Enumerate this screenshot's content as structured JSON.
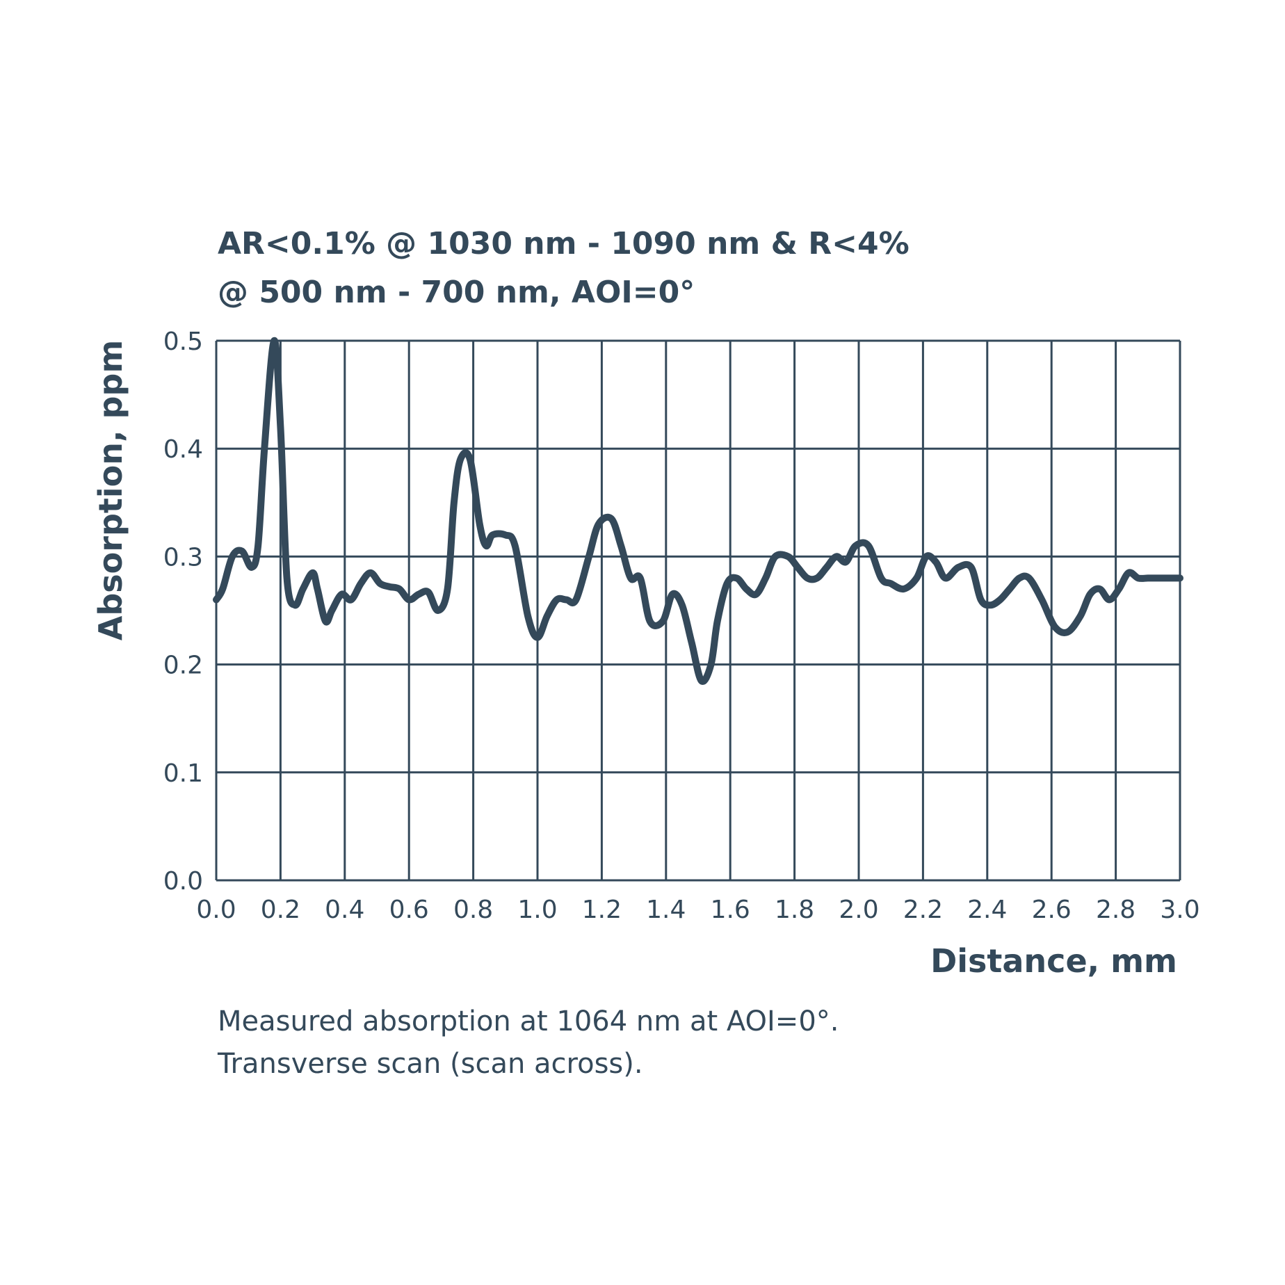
{
  "chart_data": {
    "type": "line",
    "title_lines": [
      "AR<0.1% @ 1030 nm - 1090 nm & R<4%",
      "@ 500 nm - 700 nm, AOI=0°"
    ],
    "xlabel": "Distance, mm",
    "ylabel": "Absorption, ppm",
    "xlim": [
      0,
      3.0
    ],
    "ylim": [
      0,
      0.5
    ],
    "x_ticks": [
      "0.0",
      "0.2",
      "0.4",
      "0.6",
      "0.8",
      "1.0",
      "1.2",
      "1.4",
      "1.6",
      "1.8",
      "2.0",
      "2.2",
      "2.4",
      "2.6",
      "2.8",
      "3.0"
    ],
    "y_ticks": [
      "0.0",
      "0.1",
      "0.2",
      "0.3",
      "0.4",
      "0.5"
    ],
    "grid": true,
    "caption_lines": [
      "Measured absorption at 1064 nm at AOI=0°.",
      "Transverse scan (scan across)."
    ],
    "colors": {
      "line": "#34495a",
      "grid": "#34495a",
      "text": "#34495a"
    },
    "series": [
      {
        "x": [
          0.0,
          0.02,
          0.05,
          0.08,
          0.11,
          0.13,
          0.15,
          0.18,
          0.2,
          0.22,
          0.245,
          0.27,
          0.3,
          0.315,
          0.34,
          0.36,
          0.39,
          0.42,
          0.45,
          0.48,
          0.51,
          0.54,
          0.57,
          0.6,
          0.63,
          0.66,
          0.69,
          0.72,
          0.74,
          0.76,
          0.79,
          0.82,
          0.84,
          0.86,
          0.9,
          0.93,
          0.97,
          1.0,
          1.03,
          1.06,
          1.09,
          1.12,
          1.16,
          1.19,
          1.23,
          1.26,
          1.29,
          1.32,
          1.35,
          1.39,
          1.42,
          1.45,
          1.48,
          1.51,
          1.54,
          1.56,
          1.59,
          1.62,
          1.65,
          1.68,
          1.71,
          1.74,
          1.78,
          1.81,
          1.84,
          1.87,
          1.9,
          1.93,
          1.96,
          1.99,
          2.03,
          2.07,
          2.1,
          2.14,
          2.18,
          2.21,
          2.24,
          2.27,
          2.31,
          2.35,
          2.38,
          2.41,
          2.44,
          2.47,
          2.5,
          2.53,
          2.57,
          2.61,
          2.65,
          2.69,
          2.72,
          2.75,
          2.78,
          2.81,
          2.84,
          2.87,
          2.9,
          2.93,
          2.96,
          2.99,
          3.0
        ],
        "y": [
          0.26,
          0.27,
          0.3,
          0.305,
          0.29,
          0.31,
          0.4,
          0.5,
          0.42,
          0.28,
          0.255,
          0.27,
          0.285,
          0.27,
          0.24,
          0.25,
          0.265,
          0.26,
          0.275,
          0.285,
          0.275,
          0.272,
          0.27,
          0.26,
          0.265,
          0.267,
          0.25,
          0.27,
          0.35,
          0.39,
          0.39,
          0.33,
          0.31,
          0.32,
          0.32,
          0.31,
          0.245,
          0.225,
          0.245,
          0.26,
          0.26,
          0.26,
          0.3,
          0.33,
          0.335,
          0.31,
          0.28,
          0.28,
          0.24,
          0.24,
          0.265,
          0.255,
          0.22,
          0.185,
          0.2,
          0.24,
          0.275,
          0.28,
          0.27,
          0.265,
          0.28,
          0.3,
          0.3,
          0.29,
          0.28,
          0.28,
          0.29,
          0.3,
          0.295,
          0.31,
          0.31,
          0.28,
          0.275,
          0.27,
          0.28,
          0.3,
          0.295,
          0.28,
          0.29,
          0.29,
          0.26,
          0.255,
          0.26,
          0.27,
          0.28,
          0.28,
          0.26,
          0.235,
          0.23,
          0.245,
          0.265,
          0.27,
          0.26,
          0.27,
          0.285,
          0.28,
          0.28,
          0.28,
          0.28,
          0.28,
          0.28
        ]
      }
    ]
  }
}
